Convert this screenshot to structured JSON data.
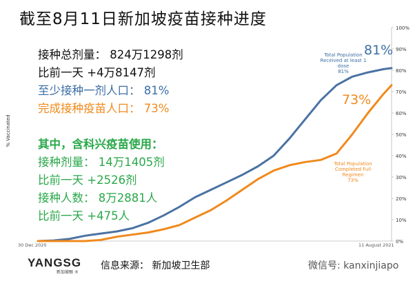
{
  "title": "截至8月11日新加坡疫苗接种进度",
  "stats": {
    "total_doses": "接种总剂量：  824万1298剂",
    "daily_increase": "比前一天 +4万8147剂",
    "at_least_one": "至少接种一剂人口：  81%",
    "fully_vaccinated": "完成接种疫苗人口：  73%"
  },
  "sinovac": {
    "heading": "其中，含科兴疫苗使用：",
    "doses": "接种剂量：  14万1405剂",
    "doses_increase": "比前一天 +2526剂",
    "people": "接种人数：  8万2881人",
    "people_increase": "比前一天 +475人"
  },
  "annotations": {
    "blue_pct": "81%",
    "orange_pct": "73%",
    "blue_label": [
      "Total Population",
      "Received at least 1",
      "dose",
      "81%"
    ],
    "orange_label": [
      "Total Population",
      "Completed Full",
      "Regimen",
      "73%"
    ]
  },
  "footer": {
    "logo": "YANGSG",
    "logo_sub": "新加坡眼 ®",
    "source": "信息来源：  新加坡卫生部",
    "wechat": "微信号: kanxinjiapo"
  },
  "colors": {
    "blue": "#4a72a3",
    "orange": "#f0891c",
    "green": "#2aa84a"
  },
  "chart_data": {
    "type": "line",
    "title": "截至8月11日新加坡疫苗接种进度",
    "xlabel": "",
    "ylabel": "% Vaccinated",
    "x_ticks": [
      "30 Dec 2020",
      "11 August 2021"
    ],
    "y_ticks": [
      "0%",
      "10%",
      "20%",
      "30%",
      "40%",
      "50%",
      "60%",
      "70%",
      "80%",
      "90%",
      "100%"
    ],
    "ylim": [
      0,
      100
    ],
    "xlim": [
      0,
      225
    ],
    "grid": false,
    "series": [
      {
        "name": "Total Population Received at least 1 dose",
        "color": "#4a72a3",
        "x": [
          0,
          10,
          20,
          30,
          40,
          50,
          60,
          70,
          80,
          90,
          100,
          110,
          120,
          130,
          140,
          150,
          160,
          170,
          180,
          190,
          200,
          210,
          220,
          225
        ],
        "y": [
          0,
          0.3,
          1,
          2.5,
          3.5,
          4.5,
          6,
          8.5,
          12,
          16,
          20.5,
          24,
          27.5,
          31,
          35,
          40,
          48,
          57,
          66,
          73,
          77,
          79,
          80.5,
          81
        ]
      },
      {
        "name": "Total Population Completed Full Regimen",
        "color": "#f0891c",
        "x": [
          0,
          20,
          30,
          40,
          50,
          60,
          70,
          80,
          90,
          100,
          110,
          120,
          130,
          140,
          150,
          160,
          170,
          180,
          190,
          200,
          210,
          220,
          225
        ],
        "y": [
          0,
          0,
          0,
          0.5,
          2,
          3,
          4,
          5.5,
          7.5,
          11,
          14.5,
          19,
          24,
          29,
          33,
          35.5,
          37,
          38,
          41,
          50,
          60,
          69,
          73
        ]
      }
    ]
  }
}
